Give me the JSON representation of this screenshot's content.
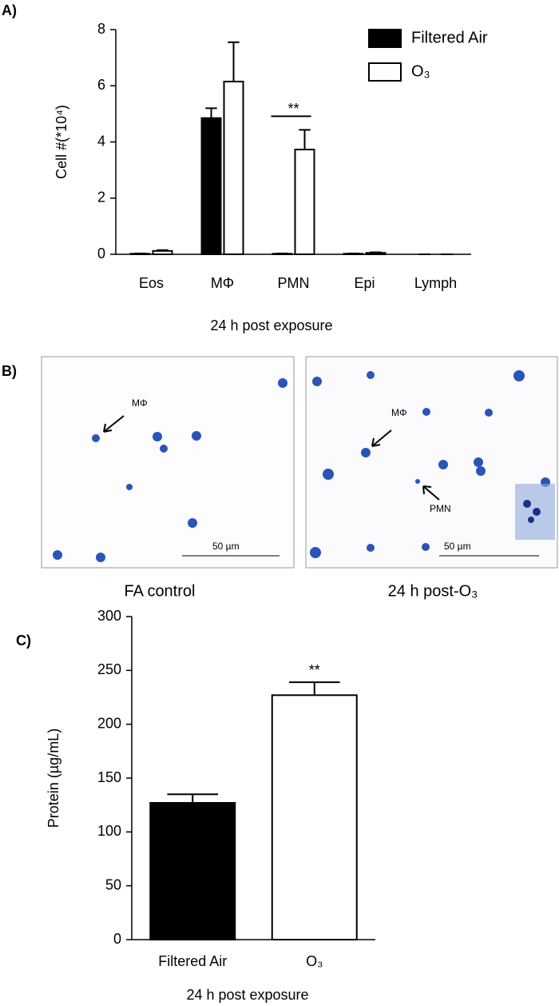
{
  "chart_data": [
    {
      "type": "bar",
      "label": "A)",
      "ylabel": "Cell #(*10⁴)",
      "xlabel": "24 h post exposure",
      "categories": [
        "Eos",
        "MΦ",
        "PMN",
        "Epi",
        "Lymph"
      ],
      "series": [
        {
          "name": "Filtered Air",
          "color": "#000000",
          "values": [
            0.02,
            4.85,
            0.02,
            0.02,
            0
          ],
          "errors": [
            0.01,
            0.35,
            0.01,
            0.01,
            0
          ]
        },
        {
          "name": "O₃",
          "color": "#ffffff",
          "values": [
            0.12,
            6.15,
            3.73,
            0.05,
            0
          ],
          "errors": [
            0.03,
            1.4,
            0.7,
            0.02,
            0
          ]
        }
      ],
      "annotations": [
        {
          "text": "**",
          "category": "PMN"
        }
      ],
      "ylim": [
        0,
        8
      ],
      "yticks": [
        0,
        2,
        4,
        6,
        8
      ],
      "grid": false,
      "legend": "upper right"
    },
    {
      "type": "bar",
      "label": "C)",
      "ylabel": "Protein (µg/mL)",
      "xlabel": "24 h post exposure",
      "categories": [
        "Filtered Air",
        "O₃"
      ],
      "values": [
        127,
        227
      ],
      "errors": [
        8,
        12
      ],
      "colors": [
        "#000000",
        "#ffffff"
      ],
      "annotations": [
        {
          "text": "**",
          "category": "O₃"
        }
      ],
      "ylim": [
        0,
        300
      ],
      "yticks": [
        0,
        50,
        100,
        150,
        200,
        250,
        300
      ],
      "grid": false
    }
  ],
  "micrographs": {
    "label": "B)",
    "panels": [
      {
        "caption": "FA control",
        "labels": [
          "MΦ"
        ],
        "scale": "50 µm"
      },
      {
        "caption": "24 h post-O₃",
        "labels": [
          "MΦ",
          "PMN"
        ],
        "scale": "50 µm"
      }
    ]
  }
}
